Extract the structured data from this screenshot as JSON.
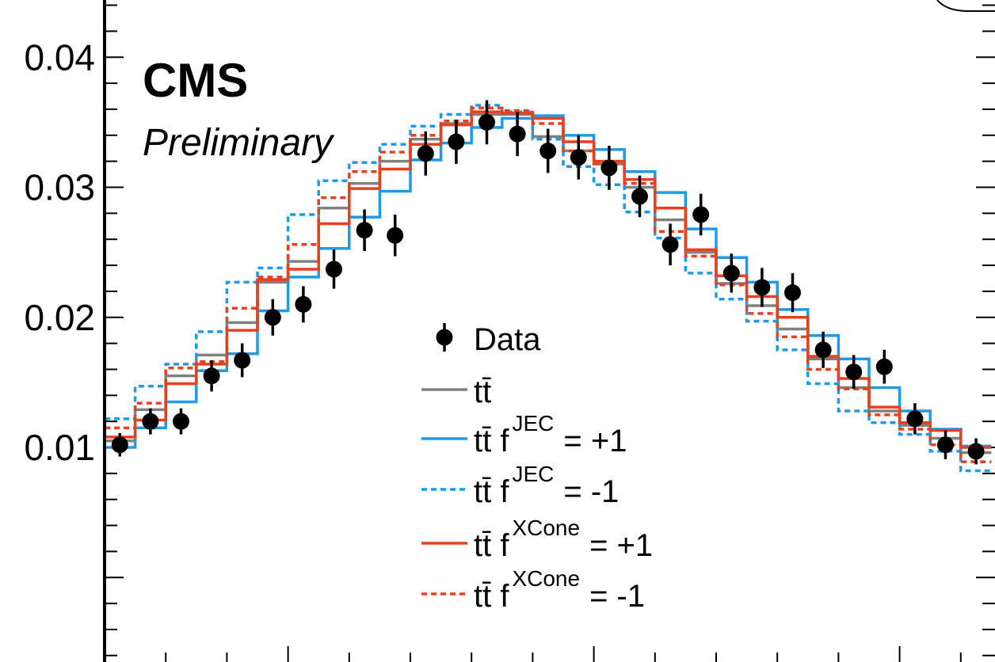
{
  "chart_data": {
    "type": "line",
    "title": "",
    "xlabel": "",
    "ylabel": "",
    "ylim": [
      -0.0065,
      0.0444
    ],
    "y_ticks": [
      {
        "value": 0.01,
        "label": "0.01"
      },
      {
        "value": 0.02,
        "label": "0.02"
      },
      {
        "value": 0.03,
        "label": "0.03"
      },
      {
        "value": 0.04,
        "label": "0.04"
      }
    ],
    "bin_count": 28,
    "cms_label": "CMS",
    "preliminary_label": "Preliminary",
    "legend": {
      "placement": "center",
      "entries": [
        {
          "key": "data",
          "text": "Data"
        },
        {
          "key": "nominal",
          "text": "tt̄"
        },
        {
          "key": "jec_up",
          "base": "tt̄ f",
          "sup": "JEC",
          "suffix": "= +1"
        },
        {
          "key": "jec_down",
          "base": "tt̄ f",
          "sup": "JEC",
          "suffix": "= -1"
        },
        {
          "key": "xcone_up",
          "base": "tt̄ f",
          "sup": "XCone",
          "suffix": "= +1"
        },
        {
          "key": "xcone_down",
          "base": "tt̄ f",
          "sup": "XCone",
          "suffix": "= -1"
        }
      ]
    },
    "data": {
      "name": "Data",
      "values": [
        0.0102,
        0.012,
        0.012,
        0.0155,
        0.0167,
        0.02,
        0.021,
        0.0237,
        0.0267,
        0.0263,
        0.0326,
        0.0335,
        0.035,
        0.0341,
        0.0328,
        0.0323,
        0.0315,
        0.0293,
        0.0256,
        0.0279,
        0.0234,
        0.0223,
        0.0219,
        0.0175,
        0.0158,
        0.0162,
        0.0122,
        0.0102,
        0.0097
      ],
      "errors": [
        0.0009,
        0.001,
        0.001,
        0.0012,
        0.0013,
        0.0014,
        0.0014,
        0.0015,
        0.0016,
        0.0016,
        0.0017,
        0.0017,
        0.0017,
        0.0017,
        0.0017,
        0.0017,
        0.0017,
        0.0016,
        0.0016,
        0.0016,
        0.0015,
        0.0015,
        0.0015,
        0.0014,
        0.0013,
        0.0013,
        0.0012,
        0.0011,
        0.001
      ]
    },
    "series": [
      {
        "key": "nominal",
        "name": "tt̄",
        "color": "#808080",
        "dashed": false,
        "values": [
          0.0105,
          0.0129,
          0.0155,
          0.0171,
          0.0196,
          0.0227,
          0.0243,
          0.0284,
          0.0303,
          0.032,
          0.0337,
          0.0349,
          0.0356,
          0.0356,
          0.0339,
          0.0328,
          0.0318,
          0.03,
          0.0275,
          0.025,
          0.0226,
          0.0209,
          0.0191,
          0.0168,
          0.0146,
          0.0128,
          0.0117,
          0.0107,
          0.0096
        ]
      },
      {
        "key": "jec_up",
        "name": "tt̄ f JEC = +1",
        "color": "#1e9ae8",
        "dashed": false,
        "values": [
          0.01,
          0.0115,
          0.0135,
          0.0159,
          0.0172,
          0.0205,
          0.0231,
          0.0253,
          0.0277,
          0.0297,
          0.0321,
          0.0334,
          0.0346,
          0.0353,
          0.0355,
          0.034,
          0.0329,
          0.0312,
          0.0296,
          0.0268,
          0.0246,
          0.0227,
          0.0206,
          0.0186,
          0.0168,
          0.0146,
          0.0128,
          0.0114,
          0.0101
        ]
      },
      {
        "key": "jec_down",
        "name": "tt̄ f JEC = -1",
        "color": "#1e9ae8",
        "dashed": true,
        "values": [
          0.0122,
          0.0147,
          0.0164,
          0.0189,
          0.0227,
          0.0238,
          0.0279,
          0.0305,
          0.0319,
          0.0333,
          0.0347,
          0.0356,
          0.0363,
          0.0358,
          0.0337,
          0.0316,
          0.0302,
          0.0281,
          0.0261,
          0.0234,
          0.0214,
          0.0197,
          0.0175,
          0.0149,
          0.0128,
          0.0119,
          0.011,
          0.0097,
          0.0082
        ]
      },
      {
        "key": "xcone_up",
        "name": "tt̄ f XCone = +1",
        "color": "#e8401c",
        "dashed": false,
        "values": [
          0.0108,
          0.0121,
          0.0149,
          0.0164,
          0.019,
          0.0229,
          0.0237,
          0.0272,
          0.0299,
          0.0314,
          0.0333,
          0.0348,
          0.0358,
          0.0357,
          0.0353,
          0.0335,
          0.032,
          0.0306,
          0.0284,
          0.0252,
          0.0232,
          0.0216,
          0.02,
          0.017,
          0.0153,
          0.0131,
          0.0119,
          0.0113,
          0.01
        ]
      },
      {
        "key": "xcone_down",
        "name": "tt̄ f XCone = -1",
        "color": "#e8401c",
        "dashed": true,
        "values": [
          0.0115,
          0.0134,
          0.0161,
          0.0166,
          0.0207,
          0.0231,
          0.0256,
          0.0292,
          0.0312,
          0.0327,
          0.034,
          0.0351,
          0.0361,
          0.0359,
          0.0349,
          0.0328,
          0.0318,
          0.0303,
          0.0266,
          0.0247,
          0.0225,
          0.0203,
          0.0185,
          0.016,
          0.0145,
          0.0125,
          0.0114,
          0.0102,
          0.0089
        ]
      }
    ]
  }
}
